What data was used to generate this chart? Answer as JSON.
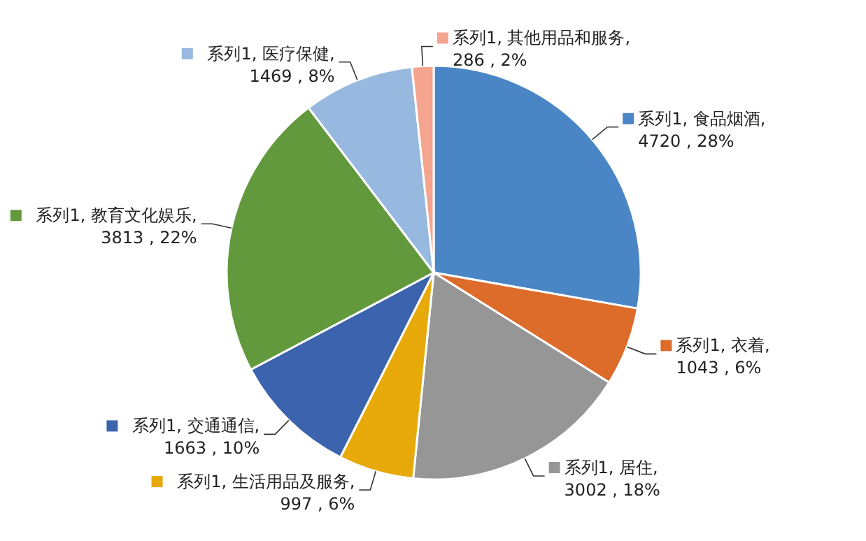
{
  "chart_data": {
    "type": "pie",
    "legend": false,
    "data_labels": true,
    "categories": [
      null,
      null,
      null,
      null,
      null,
      null,
      null,
      null
    ],
    "series": [
      {
        "values": [
          4720,
          1043,
          3002,
          997,
          1663,
          3813,
          1469,
          286
        ],
        "colors": [
          "#4a86c5",
          "#dd6b2a",
          "#969696",
          "#e8a90a",
          "#3c63ad",
          "#63993d",
          "#97b9e0",
          "#f4a48f"
        ],
        "value_labels": [
          "系列1, 食品烟酒, 4720 , 28%",
          "系列1, 衣着, 1043 , 6%",
          "系列1, 居住, 3002 , 18%",
          "系列1, 生活用品及服务, 997 , 6%",
          "系列1, 交通通信, 1663 , 10%",
          "系列1, 教育文化娱乐, 3813 , 22%",
          "系列1, 医疗保健, 1469 , 8%",
          "系列1, 其他用品和服务, 286 , 2%"
        ]
      }
    ]
  }
}
